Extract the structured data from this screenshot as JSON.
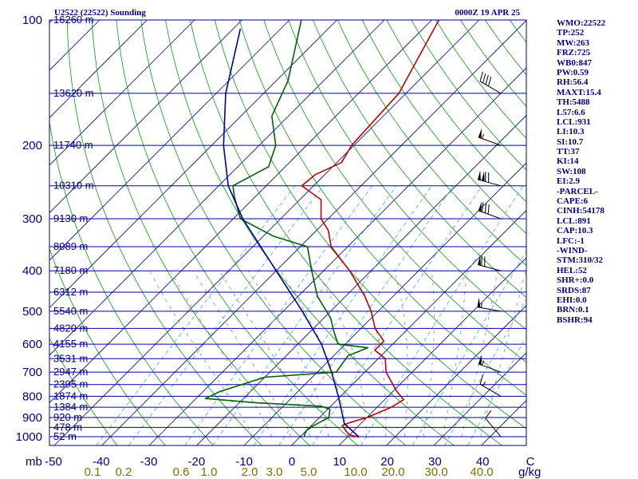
{
  "header": {
    "station": "U2522 (22522) Sounding",
    "time": "0000Z 19 APR 25"
  },
  "indices": [
    "WMO:22522",
    "TP:252",
    "MW:263",
    "FRZ:725",
    "WB0:847",
    "PW:0.59",
    "RH:56.4",
    "MAXT:15.4",
    "TH:5488",
    "L57:6.6",
    "LCL:931",
    "LI:10.3",
    "SI:10.7",
    "TT:37",
    "KI:14",
    "SW:108",
    "EI:2.9",
    "-PARCEL-",
    "CAPE:6",
    "CINH:54178",
    "LCL:891",
    "CAP:10.3",
    "LFC:-1",
    "-WIND-",
    "STM:310/32",
    "HEL:52",
    "SHR+:0.0",
    "SRDS:87",
    "EHI:0.0",
    "BRN:0.1",
    "BSHR:94"
  ],
  "chart_data": {
    "type": "skew-t",
    "title": "U2522 (22522) Sounding",
    "subtitle": "0000Z 19 APR 25",
    "x_units": "C",
    "mixing_units": "g/kg",
    "y_units": "mb",
    "pressure_levels": [
      100,
      200,
      300,
      400,
      500,
      600,
      700,
      800,
      900,
      1000
    ],
    "temperature_ticks": [
      -50,
      -40,
      -30,
      -20,
      -10,
      0,
      10,
      20,
      30,
      40
    ],
    "temperature_tick_labels": [
      "-50",
      "-40",
      "-30",
      "-20",
      "-10",
      "0",
      "10",
      "20",
      "30",
      "40",
      "C"
    ],
    "mixing_ratio_labels": [
      "0.1",
      "0.2",
      "0.6",
      "1.0",
      "2.0",
      "3.0",
      "5.0",
      "10.0",
      "20.0",
      "30.0",
      "40.0"
    ],
    "mixing_ratios": [
      0.1,
      0.2,
      0.6,
      1.0,
      2.0,
      3.0,
      5.0,
      10.0,
      20.0,
      30.0,
      40.0
    ],
    "height_levels": [
      {
        "p": 100,
        "label": "16260 m"
      },
      {
        "p": 150,
        "label": "13620 m"
      },
      {
        "p": 200,
        "label": "11740 m"
      },
      {
        "p": 250,
        "label": "10310 m"
      },
      {
        "p": 300,
        "label": "9130 m"
      },
      {
        "p": 350,
        "label": "8089 m"
      },
      {
        "p": 400,
        "label": "7180 m"
      },
      {
        "p": 450,
        "label": "6312 m"
      },
      {
        "p": 500,
        "label": "5540 m"
      },
      {
        "p": 550,
        "label": "4820 m"
      },
      {
        "p": 600,
        "label": "4155 m"
      },
      {
        "p": 650,
        "label": "3531 m"
      },
      {
        "p": 700,
        "label": "2947 m"
      },
      {
        "p": 750,
        "label": "2395 m"
      },
      {
        "p": 800,
        "label": "1874 m"
      },
      {
        "p": 850,
        "label": "1384 m"
      },
      {
        "p": 900,
        "label": "920 m"
      },
      {
        "p": 950,
        "label": "478 m"
      },
      {
        "p": 1000,
        "label": "52 m"
      }
    ],
    "series": [
      {
        "color": "#c00000",
        "points": [
          {
            "p": 1003,
            "t": 12.5
          },
          {
            "p": 990,
            "t": 10.0
          },
          {
            "p": 970,
            "t": 8.5
          },
          {
            "p": 940,
            "t": 6.5
          },
          {
            "p": 925,
            "t": 7.5
          },
          {
            "p": 900,
            "t": 10.0
          },
          {
            "p": 850,
            "t": 13.0
          },
          {
            "p": 815,
            "t": 14.0
          },
          {
            "p": 775,
            "t": 10.5
          },
          {
            "p": 700,
            "t": 4.5
          },
          {
            "p": 650,
            "t": 1.5
          },
          {
            "p": 620,
            "t": -2.5
          },
          {
            "p": 590,
            "t": -2.5
          },
          {
            "p": 550,
            "t": -7.0
          },
          {
            "p": 500,
            "t": -11.5
          },
          {
            "p": 460,
            "t": -16.0
          },
          {
            "p": 400,
            "t": -24.5
          },
          {
            "p": 350,
            "t": -33.5
          },
          {
            "p": 320,
            "t": -37.5
          },
          {
            "p": 300,
            "t": -41.5
          },
          {
            "p": 270,
            "t": -45.5
          },
          {
            "p": 250,
            "t": -52.5
          },
          {
            "p": 235,
            "t": -52.0
          },
          {
            "p": 220,
            "t": -49.0
          },
          {
            "p": 200,
            "t": -50.5
          },
          {
            "p": 150,
            "t": -51.5
          },
          {
            "p": 100,
            "t": -58.5
          }
        ]
      },
      {
        "color": "#006000",
        "points": [
          {
            "p": 1003,
            "t": 1.0
          },
          {
            "p": 990,
            "t": 0.5
          },
          {
            "p": 965,
            "t": 0.0
          },
          {
            "p": 940,
            "t": 0.5
          },
          {
            "p": 900,
            "t": 2.0
          },
          {
            "p": 860,
            "t": 0.5
          },
          {
            "p": 845,
            "t": -2.0
          },
          {
            "p": 830,
            "t": -16.0
          },
          {
            "p": 810,
            "t": -28.0
          },
          {
            "p": 780,
            "t": -26.5
          },
          {
            "p": 720,
            "t": -20.0
          },
          {
            "p": 700,
            "t": -6.0
          },
          {
            "p": 640,
            "t": -7.0
          },
          {
            "p": 612,
            "t": -4.5
          },
          {
            "p": 600,
            "t": -11.5
          },
          {
            "p": 560,
            "t": -15.0
          },
          {
            "p": 520,
            "t": -18.5
          },
          {
            "p": 460,
            "t": -26.0
          },
          {
            "p": 400,
            "t": -32.5
          },
          {
            "p": 350,
            "t": -38.5
          },
          {
            "p": 330,
            "t": -48.0
          },
          {
            "p": 300,
            "t": -58.5
          },
          {
            "p": 265,
            "t": -64.5
          },
          {
            "p": 250,
            "t": -67.0
          },
          {
            "p": 225,
            "t": -63.5
          },
          {
            "p": 200,
            "t": -66.5
          },
          {
            "p": 170,
            "t": -73.5
          },
          {
            "p": 140,
            "t": -77.5
          },
          {
            "p": 100,
            "t": -87.5
          }
        ]
      },
      {
        "color": "#0000a0",
        "points": [
          {
            "p": 1003,
            "t": 12.5
          },
          {
            "p": 930,
            "t": 6.5
          },
          {
            "p": 900,
            "t": 5.0
          },
          {
            "p": 800,
            "t": -0.5
          },
          {
            "p": 700,
            "t": -7.0
          },
          {
            "p": 600,
            "t": -15.0
          },
          {
            "p": 500,
            "t": -26.0
          },
          {
            "p": 400,
            "t": -40.0
          },
          {
            "p": 300,
            "t": -58.0
          },
          {
            "p": 250,
            "t": -68.0
          },
          {
            "p": 200,
            "t": -77.5
          },
          {
            "p": 150,
            "t": -88.0
          },
          {
            "p": 105,
            "t": -98.5
          }
        ]
      }
    ],
    "winds": [
      {
        "p": 1000,
        "dir": 320,
        "spd": 10
      },
      {
        "p": 800,
        "dir": 300,
        "spd": 15
      },
      {
        "p": 700,
        "dir": 290,
        "spd": 55
      },
      {
        "p": 500,
        "dir": 280,
        "spd": 55
      },
      {
        "p": 400,
        "dir": 285,
        "spd": 70
      },
      {
        "p": 300,
        "dir": 290,
        "spd": 80
      },
      {
        "p": 250,
        "dir": 285,
        "spd": 120
      },
      {
        "p": 200,
        "dir": 290,
        "spd": 55
      },
      {
        "p": 150,
        "dir": 300,
        "spd": 40
      }
    ],
    "colors": {
      "isobar": "#0000a0",
      "isotherm": "#0000a0",
      "dry_adiabat": "#00a000",
      "moist_adiabat": "#808080",
      "mixing_ratio": "#4aa8e0",
      "text": "#000080",
      "mixing_text": "#7a7000"
    },
    "grid": true
  }
}
